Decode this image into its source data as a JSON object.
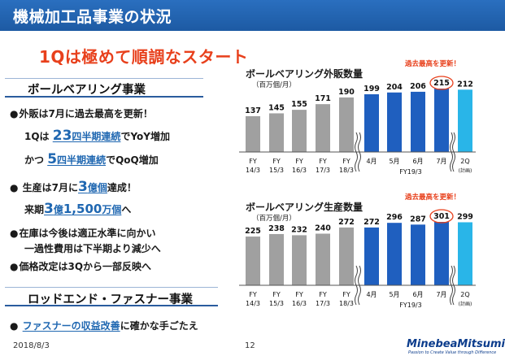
{
  "header": {
    "title": "機械加工品事業の状況"
  },
  "headline": "1Qは極めて順調なスタート",
  "section1": {
    "title": "ボールベアリング事業",
    "line1": "外販は7月に過去最高を更新！",
    "line2_a": "1Qは",
    "line2_num": "23",
    "line2_link": "四半期連続",
    "line2_b": "でYoY増加",
    "line3_a": "かつ",
    "line3_num": "5",
    "line3_link": "四半期連続",
    "line3_b": "でQoQ増加",
    "line4_a": "生産は7月に",
    "line4_num": "3",
    "line4_link": "億個",
    "line4_b": "達成！",
    "line5_a": "来期",
    "line5_n1": "3",
    "line5_u1": "億",
    "line5_n2": "1,500",
    "line5_u2": "万個",
    "line5_b": "へ",
    "line6": "在庫は今後は適正水準に向かい",
    "line7": "一過性費用は下半期より減少へ",
    "line8": "価格改定は3Qから一部反映へ"
  },
  "section2": {
    "title": "ロッドエンド・ファスナー事業",
    "line1_link": "ファスナーの収益改善",
    "line1_b": "に確かな手ごたえ"
  },
  "chart_data": [
    {
      "type": "bar",
      "title": "ボールベアリング外販数量",
      "unit": "（百万個/月）",
      "record_note": "過去最高を更新！",
      "categories": [
        "FY 14/3",
        "FY 15/3",
        "FY 16/3",
        "FY 17/3",
        "FY 18/3",
        "4月",
        "5月",
        "6月",
        "7月",
        "2Q"
      ],
      "values": [
        137,
        145,
        155,
        171,
        190,
        199,
        204,
        206,
        215,
        212
      ],
      "group_label": "FY19/3",
      "plan_label": "(計画)",
      "colors": {
        "fy": "#a0a0a0",
        "month": "#1f5fbf",
        "plan": "#29b5e8",
        "record": "#e8401c"
      }
    },
    {
      "type": "bar",
      "title": "ボールベアリング生産数量",
      "unit": "（百万個/月）",
      "record_note": "過去最高を更新！",
      "categories": [
        "FY 14/3",
        "FY 15/3",
        "FY 16/3",
        "FY 17/3",
        "FY 18/3",
        "4月",
        "5月",
        "6月",
        "7月",
        "2Q"
      ],
      "values": [
        225,
        238,
        232,
        240,
        272,
        272,
        296,
        287,
        301,
        299
      ],
      "group_label": "FY19/3",
      "plan_label": "(計画)",
      "colors": {
        "fy": "#a0a0a0",
        "month": "#1f5fbf",
        "plan": "#29b5e8",
        "record": "#e8401c"
      }
    }
  ],
  "footer": {
    "date": "2018/8/3",
    "page": "12",
    "logo": "MinebeaMitsumi",
    "tagline": "Passion to Create Value through Difference"
  }
}
